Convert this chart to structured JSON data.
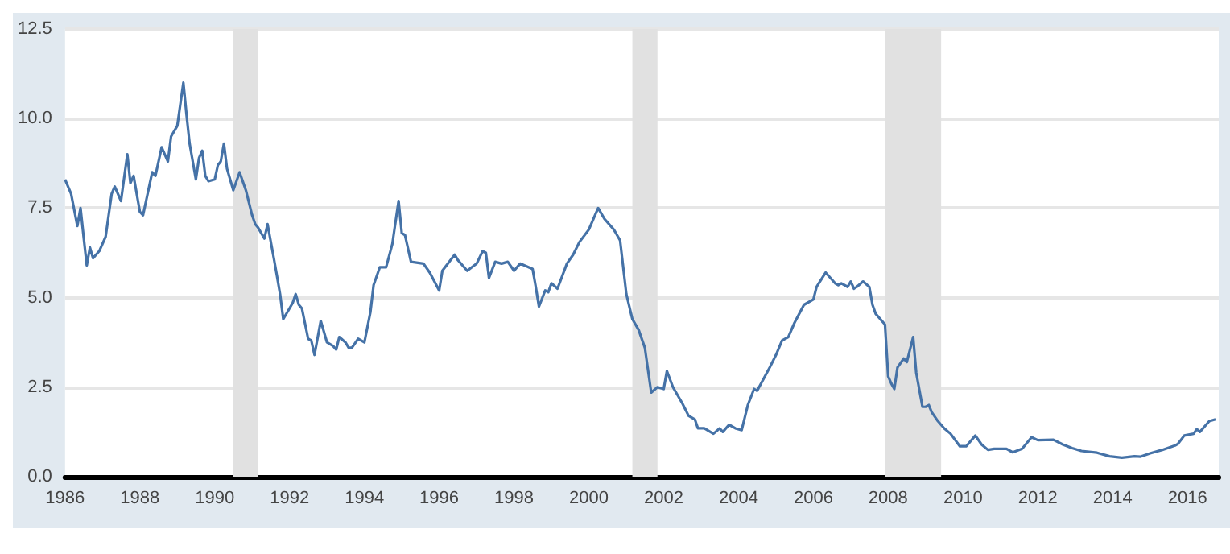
{
  "chart_data": {
    "type": "line",
    "x": [
      "1986-01",
      "1986-03",
      "1986-05",
      "1986-06",
      "1986-07",
      "1986-08",
      "1986-09",
      "1986-10",
      "1986-12",
      "1987-02",
      "1987-04",
      "1987-05",
      "1987-07",
      "1987-09",
      "1987-10",
      "1987-11",
      "1988-01",
      "1988-02",
      "1988-05",
      "1988-06",
      "1988-08",
      "1988-10",
      "1988-11",
      "1989-01",
      "1989-03",
      "1989-04",
      "1989-05",
      "1989-07",
      "1989-08",
      "1989-09",
      "1989-10",
      "1989-11",
      "1990-01",
      "1990-02",
      "1990-03",
      "1990-04",
      "1990-05",
      "1990-07",
      "1990-09",
      "1990-11",
      "1991-01",
      "1991-02",
      "1991-03",
      "1991-05",
      "1991-06",
      "1991-08",
      "1991-09",
      "1991-10",
      "1991-11",
      "1992-01",
      "1992-02",
      "1992-03",
      "1992-04",
      "1992-05",
      "1992-07",
      "1992-08",
      "1992-09",
      "1992-11",
      "1993-01",
      "1993-03",
      "1993-04",
      "1993-05",
      "1993-07",
      "1993-08",
      "1993-09",
      "1993-11",
      "1994-01",
      "1994-03",
      "1994-04",
      "1994-06",
      "1994-08",
      "1994-10",
      "1994-12",
      "1995-01",
      "1995-02",
      "1995-04",
      "1995-08",
      "1995-10",
      "1996-01",
      "1996-02",
      "1996-06",
      "1996-07",
      "1996-10",
      "1997-01",
      "1997-03",
      "1997-04",
      "1997-05",
      "1997-07",
      "1997-09",
      "1997-11",
      "1998-01",
      "1998-03",
      "1998-07",
      "1998-08",
      "1998-09",
      "1998-11",
      "1998-12",
      "1999-01",
      "1999-03",
      "1999-06",
      "1999-08",
      "1999-10",
      "2000-01",
      "2000-03",
      "2000-04",
      "2000-06",
      "2000-09",
      "2000-11",
      "2001-01",
      "2001-03",
      "2001-05",
      "2001-07",
      "2001-09",
      "2001-11",
      "2002-01",
      "2002-02",
      "2002-04",
      "2002-07",
      "2002-09",
      "2002-11",
      "2002-12",
      "2003-02",
      "2003-05",
      "2003-07",
      "2003-08",
      "2003-10",
      "2003-12",
      "2004-02",
      "2004-04",
      "2004-06",
      "2004-07",
      "2004-11",
      "2005-01",
      "2005-03",
      "2005-05",
      "2005-07",
      "2005-10",
      "2006-01",
      "2006-02",
      "2006-05",
      "2006-08",
      "2006-09",
      "2006-10",
      "2006-12",
      "2007-01",
      "2007-02",
      "2007-03",
      "2007-05",
      "2007-07",
      "2007-08",
      "2007-09",
      "2007-12",
      "2008-01",
      "2008-02",
      "2008-03",
      "2008-04",
      "2008-06",
      "2008-07",
      "2008-09",
      "2008-10",
      "2008-12",
      "2009-01",
      "2009-02",
      "2009-03",
      "2009-05",
      "2009-07",
      "2009-09",
      "2009-12",
      "2010-02",
      "2010-05",
      "2010-07",
      "2010-09",
      "2010-11",
      "2011-03",
      "2011-05",
      "2011-08",
      "2011-11",
      "2012-01",
      "2012-06",
      "2012-09",
      "2012-12",
      "2013-03",
      "2013-08",
      "2013-12",
      "2014-04",
      "2014-08",
      "2014-10",
      "2015-01",
      "2015-05",
      "2015-09",
      "2015-10",
      "2015-12",
      "2016-03",
      "2016-04",
      "2016-05",
      "2016-08",
      "2016-10"
    ],
    "series": [
      {
        "color": "#4572a7",
        "values": [
          8.3,
          7.9,
          7.0,
          7.5,
          6.7,
          5.9,
          6.4,
          6.1,
          6.3,
          6.7,
          7.9,
          8.1,
          7.7,
          9.0,
          8.2,
          8.4,
          7.4,
          7.3,
          8.5,
          8.4,
          9.2,
          8.8,
          9.5,
          9.8,
          11.0,
          10.1,
          9.3,
          8.3,
          8.9,
          9.1,
          8.4,
          8.25,
          8.3,
          8.7,
          8.8,
          9.3,
          8.6,
          8.0,
          8.5,
          8.0,
          7.3,
          7.05,
          6.95,
          6.65,
          7.05,
          6.1,
          5.6,
          5.1,
          4.4,
          4.7,
          4.85,
          5.1,
          4.8,
          4.7,
          3.85,
          3.8,
          3.4,
          4.35,
          3.75,
          3.65,
          3.55,
          3.9,
          3.75,
          3.6,
          3.6,
          3.85,
          3.75,
          4.6,
          5.35,
          5.85,
          5.85,
          6.5,
          7.7,
          6.8,
          6.75,
          6.0,
          5.95,
          5.7,
          5.2,
          5.75,
          6.2,
          6.05,
          5.75,
          5.95,
          6.3,
          6.25,
          5.55,
          6.0,
          5.95,
          6.0,
          5.75,
          5.95,
          5.8,
          5.3,
          4.75,
          5.2,
          5.15,
          5.4,
          5.25,
          5.95,
          6.2,
          6.55,
          6.9,
          7.3,
          7.5,
          7.2,
          6.9,
          6.6,
          5.1,
          4.4,
          4.1,
          3.6,
          2.35,
          2.5,
          2.45,
          2.95,
          2.5,
          2.05,
          1.7,
          1.6,
          1.35,
          1.35,
          1.2,
          1.35,
          1.25,
          1.45,
          1.35,
          1.3,
          2.0,
          2.45,
          2.4,
          3.05,
          3.4,
          3.8,
          3.9,
          4.3,
          4.8,
          4.95,
          5.3,
          5.7,
          5.4,
          5.35,
          5.4,
          5.3,
          5.45,
          5.25,
          5.3,
          5.45,
          5.3,
          4.8,
          4.55,
          4.25,
          2.8,
          2.6,
          2.45,
          3.05,
          3.3,
          3.2,
          3.9,
          2.9,
          1.95,
          1.95,
          2.0,
          1.8,
          1.55,
          1.35,
          1.2,
          0.85,
          0.85,
          1.15,
          0.9,
          0.75,
          0.78,
          0.78,
          0.68,
          0.78,
          1.1,
          1.02,
          1.03,
          0.9,
          0.8,
          0.72,
          0.67,
          0.57,
          0.53,
          0.57,
          0.56,
          0.65,
          0.75,
          0.87,
          0.92,
          1.15,
          1.2,
          1.33,
          1.25,
          1.55,
          1.6
        ]
      }
    ],
    "xlim": [
      "1986-01",
      "2016-11"
    ],
    "xticks": [
      "1986",
      "1988",
      "1990",
      "1992",
      "1994",
      "1996",
      "1998",
      "2000",
      "2002",
      "2004",
      "2006",
      "2008",
      "2010",
      "2012",
      "2014",
      "2016"
    ],
    "ylim": [
      0,
      12.5
    ],
    "yticks": [
      {
        "value": 0,
        "label": "0.0"
      },
      2.5,
      {
        "value": 5,
        "label": "5.0"
      },
      7.5,
      {
        "value": 10,
        "label": "10.0"
      },
      12.5
    ],
    "bands": [
      {
        "axis": "x",
        "from": "1990-07",
        "to": "1991-03",
        "color": "#e1e1e1"
      },
      {
        "axis": "x",
        "from": "2001-03",
        "to": "2001-11",
        "color": "#e1e1e1"
      },
      {
        "axis": "x",
        "from": "2007-12",
        "to": "2009-06",
        "color": "#e1e1e1"
      }
    ],
    "grid": "y"
  }
}
